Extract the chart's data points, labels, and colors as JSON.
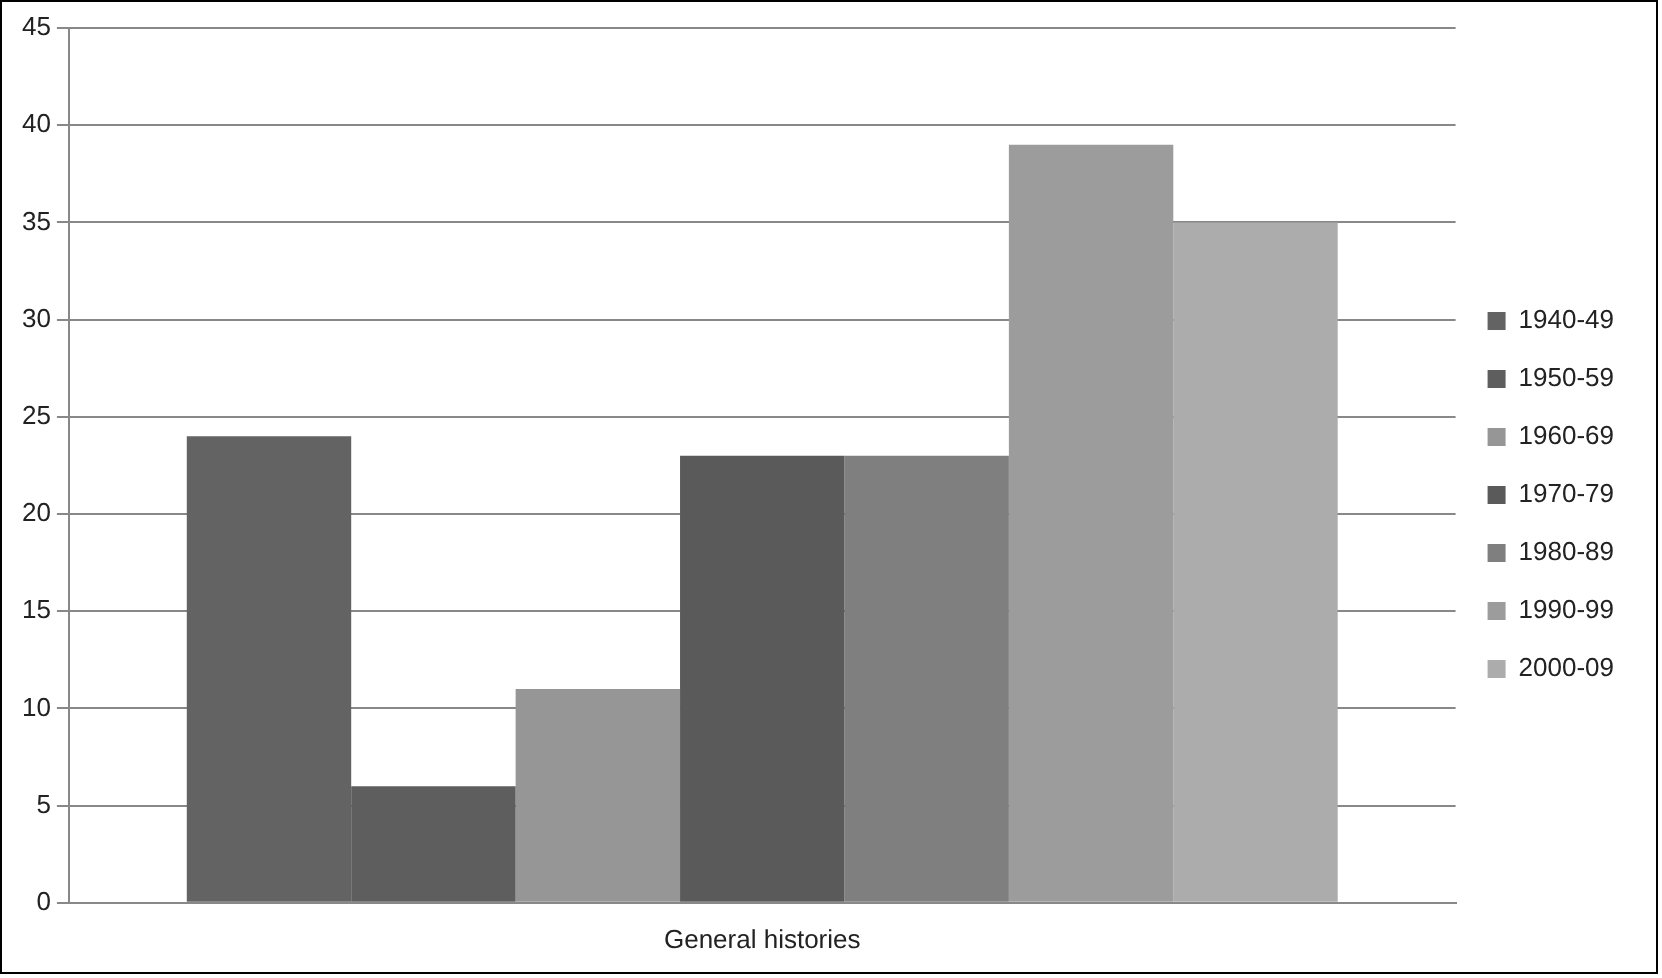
{
  "chart_data": {
    "type": "bar",
    "categories": [
      "General histories"
    ],
    "series": [
      {
        "name": "1940-49",
        "color": "#636363",
        "values": [
          24
        ]
      },
      {
        "name": "1950-59",
        "color": "#5e5e5e",
        "values": [
          6
        ]
      },
      {
        "name": "1960-69",
        "color": "#969696",
        "values": [
          11
        ]
      },
      {
        "name": "1970-79",
        "color": "#5a5a5a",
        "values": [
          23
        ]
      },
      {
        "name": "1980-89",
        "color": "#7f7f7f",
        "values": [
          23
        ]
      },
      {
        "name": "1990-99",
        "color": "#9c9c9c",
        "values": [
          39
        ]
      },
      {
        "name": "2000-09",
        "color": "#acacac",
        "values": [
          35
        ]
      }
    ],
    "ylim": [
      0,
      45
    ],
    "yticks": [
      0,
      5,
      10,
      15,
      20,
      25,
      30,
      35,
      40,
      45
    ],
    "grid": "y",
    "legend": "right"
  }
}
